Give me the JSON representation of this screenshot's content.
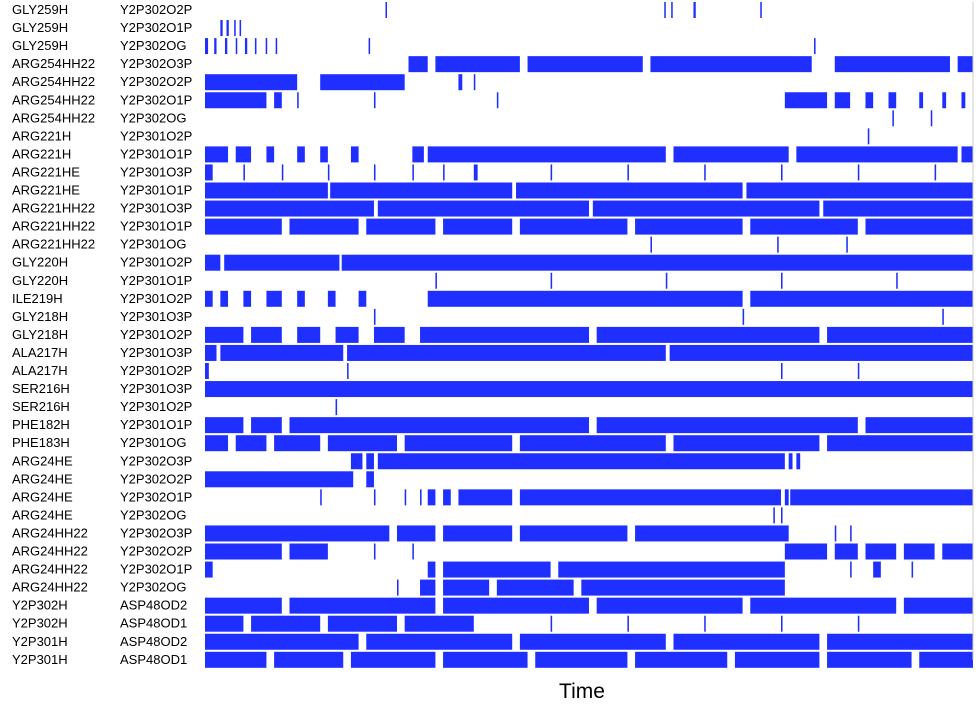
{
  "chart_data": {
    "type": "heatmap",
    "xlabel": "Time",
    "ylabel": "",
    "title": "",
    "xlim": [
      0,
      1
    ],
    "bar_color": "#1f2fff",
    "background": "#ffffff",
    "legend": "none",
    "grid": false,
    "rows": [
      {
        "donor": "GLY259H",
        "acceptor": "Y2P302O2P",
        "segments": [
          [
            0.235,
            0.237
          ],
          [
            0.598,
            0.6
          ],
          [
            0.607,
            0.609
          ],
          [
            0.636,
            0.639
          ],
          [
            0.723,
            0.725
          ]
        ]
      },
      {
        "donor": "GLY259H",
        "acceptor": "Y2P302O1P",
        "segments": [
          [
            0.02,
            0.023
          ],
          [
            0.028,
            0.031
          ],
          [
            0.038,
            0.04
          ],
          [
            0.045,
            0.047
          ]
        ]
      },
      {
        "donor": "GLY259H",
        "acceptor": "Y2P302OG",
        "segments": [
          [
            0.0,
            0.004
          ],
          [
            0.012,
            0.015
          ],
          [
            0.026,
            0.029
          ],
          [
            0.04,
            0.042
          ],
          [
            0.052,
            0.055
          ],
          [
            0.065,
            0.067
          ],
          [
            0.079,
            0.081
          ],
          [
            0.092,
            0.094
          ],
          [
            0.213,
            0.215
          ],
          [
            0.793,
            0.795
          ]
        ]
      },
      {
        "donor": "ARG254HH22",
        "acceptor": "Y2P302O3P",
        "segments": [
          [
            0.265,
            0.29
          ],
          [
            0.3,
            0.41
          ],
          [
            0.42,
            0.57
          ],
          [
            0.58,
            0.79
          ],
          [
            0.82,
            0.97
          ],
          [
            0.98,
            1.0
          ]
        ]
      },
      {
        "donor": "ARG254HH22",
        "acceptor": "Y2P302O2P",
        "segments": [
          [
            0.0,
            0.12
          ],
          [
            0.15,
            0.26
          ],
          [
            0.33,
            0.335
          ],
          [
            0.35,
            0.352
          ]
        ]
      },
      {
        "donor": "ARG254HH22",
        "acceptor": "Y2P302O1P",
        "segments": [
          [
            0.0,
            0.08
          ],
          [
            0.09,
            0.1
          ],
          [
            0.12,
            0.122
          ],
          [
            0.22,
            0.222
          ],
          [
            0.38,
            0.382
          ],
          [
            0.755,
            0.81
          ],
          [
            0.82,
            0.84
          ],
          [
            0.86,
            0.87
          ],
          [
            0.89,
            0.9
          ],
          [
            0.93,
            0.935
          ],
          [
            0.96,
            0.965
          ],
          [
            0.985,
            0.99
          ]
        ]
      },
      {
        "donor": "ARG254HH22",
        "acceptor": "Y2P302OG",
        "segments": [
          [
            0.895,
            0.897
          ],
          [
            0.945,
            0.947
          ]
        ]
      },
      {
        "donor": "ARG221H",
        "acceptor": "Y2P301O2P",
        "segments": [
          [
            0.863,
            0.865
          ]
        ]
      },
      {
        "donor": "ARG221H",
        "acceptor": "Y2P301O1P",
        "segments": [
          [
            0.0,
            0.03
          ],
          [
            0.04,
            0.06
          ],
          [
            0.08,
            0.09
          ],
          [
            0.12,
            0.13
          ],
          [
            0.15,
            0.16
          ],
          [
            0.19,
            0.2
          ],
          [
            0.27,
            0.285
          ],
          [
            0.29,
            0.6
          ],
          [
            0.61,
            0.76
          ],
          [
            0.77,
            0.98
          ],
          [
            0.985,
            1.0
          ]
        ]
      },
      {
        "donor": "ARG221HE",
        "acceptor": "Y2P301O3P",
        "segments": [
          [
            0.0,
            0.01
          ],
          [
            0.05,
            0.052
          ],
          [
            0.1,
            0.102
          ],
          [
            0.16,
            0.162
          ],
          [
            0.22,
            0.222
          ],
          [
            0.27,
            0.272
          ],
          [
            0.31,
            0.312
          ],
          [
            0.35,
            0.355
          ],
          [
            0.45,
            0.452
          ],
          [
            0.55,
            0.552
          ],
          [
            0.65,
            0.652
          ],
          [
            0.75,
            0.752
          ],
          [
            0.85,
            0.852
          ],
          [
            0.95,
            0.952
          ]
        ]
      },
      {
        "donor": "ARG221HE",
        "acceptor": "Y2P301O1P",
        "segments": [
          [
            0.0,
            0.16
          ],
          [
            0.163,
            0.4
          ],
          [
            0.405,
            0.7
          ],
          [
            0.705,
            1.0
          ]
        ]
      },
      {
        "donor": "ARG221HH22",
        "acceptor": "Y2P301O3P",
        "segments": [
          [
            0.0,
            0.22
          ],
          [
            0.225,
            0.5
          ],
          [
            0.505,
            0.8
          ],
          [
            0.805,
            1.0
          ]
        ]
      },
      {
        "donor": "ARG221HH22",
        "acceptor": "Y2P301O1P",
        "segments": [
          [
            0.0,
            0.1
          ],
          [
            0.11,
            0.2
          ],
          [
            0.21,
            0.3
          ],
          [
            0.31,
            0.4
          ],
          [
            0.41,
            0.55
          ],
          [
            0.56,
            0.7
          ],
          [
            0.71,
            0.85
          ],
          [
            0.86,
            1.0
          ]
        ]
      },
      {
        "donor": "ARG221HH22",
        "acceptor": "Y2P301OG",
        "segments": [
          [
            0.58,
            0.582
          ],
          [
            0.745,
            0.747
          ],
          [
            0.835,
            0.837
          ]
        ]
      },
      {
        "donor": "GLY220H",
        "acceptor": "Y2P301O2P",
        "segments": [
          [
            0.0,
            0.02
          ],
          [
            0.025,
            0.175
          ],
          [
            0.178,
            1.0
          ]
        ]
      },
      {
        "donor": "GLY220H",
        "acceptor": "Y2P301O1P",
        "segments": [
          [
            0.3,
            0.302
          ],
          [
            0.45,
            0.452
          ],
          [
            0.6,
            0.602
          ],
          [
            0.75,
            0.752
          ],
          [
            0.9,
            0.902
          ]
        ]
      },
      {
        "donor": "ILE219H",
        "acceptor": "Y2P301O2P",
        "segments": [
          [
            0.0,
            0.01
          ],
          [
            0.02,
            0.03
          ],
          [
            0.05,
            0.06
          ],
          [
            0.08,
            0.1
          ],
          [
            0.12,
            0.13
          ],
          [
            0.16,
            0.17
          ],
          [
            0.2,
            0.21
          ],
          [
            0.29,
            0.7
          ],
          [
            0.71,
            1.0
          ]
        ]
      },
      {
        "donor": "GLY218H",
        "acceptor": "Y2P301O3P",
        "segments": [
          [
            0.22,
            0.222
          ],
          [
            0.7,
            0.702
          ],
          [
            0.96,
            0.962
          ]
        ]
      },
      {
        "donor": "GLY218H",
        "acceptor": "Y2P301O2P",
        "segments": [
          [
            0.0,
            0.05
          ],
          [
            0.06,
            0.1
          ],
          [
            0.12,
            0.15
          ],
          [
            0.17,
            0.2
          ],
          [
            0.22,
            0.26
          ],
          [
            0.28,
            0.5
          ],
          [
            0.51,
            0.8
          ],
          [
            0.81,
            1.0
          ]
        ]
      },
      {
        "donor": "ALA217H",
        "acceptor": "Y2P301O3P",
        "segments": [
          [
            0.0,
            0.015
          ],
          [
            0.02,
            0.18
          ],
          [
            0.185,
            0.6
          ],
          [
            0.605,
            1.0
          ]
        ]
      },
      {
        "donor": "ALA217H",
        "acceptor": "Y2P301O2P",
        "segments": [
          [
            0.0,
            0.005
          ],
          [
            0.185,
            0.187
          ],
          [
            0.75,
            0.752
          ],
          [
            0.85,
            0.852
          ]
        ]
      },
      {
        "donor": "SER216H",
        "acceptor": "Y2P301O3P",
        "segments": [
          [
            0.0,
            1.0
          ]
        ]
      },
      {
        "donor": "SER216H",
        "acceptor": "Y2P301O2P",
        "segments": [
          [
            0.17,
            0.172
          ]
        ]
      },
      {
        "donor": "PHE182H",
        "acceptor": "Y2P301O1P",
        "segments": [
          [
            0.0,
            0.05
          ],
          [
            0.06,
            0.1
          ],
          [
            0.11,
            0.5
          ],
          [
            0.51,
            0.85
          ],
          [
            0.86,
            1.0
          ]
        ]
      },
      {
        "donor": "PHE183H",
        "acceptor": "Y2P301OG",
        "segments": [
          [
            0.0,
            0.03
          ],
          [
            0.04,
            0.08
          ],
          [
            0.09,
            0.15
          ],
          [
            0.16,
            0.25
          ],
          [
            0.26,
            0.4
          ],
          [
            0.41,
            0.6
          ],
          [
            0.61,
            0.8
          ],
          [
            0.81,
            1.0
          ]
        ]
      },
      {
        "donor": "ARG24HE",
        "acceptor": "Y2P302O3P",
        "segments": [
          [
            0.19,
            0.205
          ],
          [
            0.21,
            0.22
          ],
          [
            0.225,
            0.755
          ],
          [
            0.76,
            0.765
          ],
          [
            0.77,
            0.775
          ]
        ]
      },
      {
        "donor": "ARG24HE",
        "acceptor": "Y2P302O2P",
        "segments": [
          [
            0.0,
            0.193
          ],
          [
            0.21,
            0.22
          ]
        ]
      },
      {
        "donor": "ARG24HE",
        "acceptor": "Y2P302O1P",
        "segments": [
          [
            0.15,
            0.152
          ],
          [
            0.22,
            0.222
          ],
          [
            0.26,
            0.262
          ],
          [
            0.28,
            0.282
          ],
          [
            0.29,
            0.3
          ],
          [
            0.31,
            0.32
          ],
          [
            0.33,
            0.4
          ],
          [
            0.41,
            0.75
          ],
          [
            0.755,
            0.76
          ],
          [
            0.762,
            1.0
          ]
        ]
      },
      {
        "donor": "ARG24HE",
        "acceptor": "Y2P302OG",
        "segments": [
          [
            0.74,
            0.742
          ],
          [
            0.75,
            0.752
          ]
        ]
      },
      {
        "donor": "ARG24HH22",
        "acceptor": "Y2P302O3P",
        "segments": [
          [
            0.0,
            0.24
          ],
          [
            0.25,
            0.3
          ],
          [
            0.31,
            0.4
          ],
          [
            0.41,
            0.55
          ],
          [
            0.56,
            0.76
          ],
          [
            0.82,
            0.822
          ],
          [
            0.84,
            0.842
          ]
        ]
      },
      {
        "donor": "ARG24HH22",
        "acceptor": "Y2P302O2P",
        "segments": [
          [
            0.0,
            0.1
          ],
          [
            0.11,
            0.16
          ],
          [
            0.22,
            0.222
          ],
          [
            0.27,
            0.272
          ],
          [
            0.755,
            0.81
          ],
          [
            0.82,
            0.85
          ],
          [
            0.86,
            0.9
          ],
          [
            0.91,
            0.95
          ],
          [
            0.96,
            1.0
          ]
        ]
      },
      {
        "donor": "ARG24HH22",
        "acceptor": "Y2P302O1P",
        "segments": [
          [
            0.0,
            0.01
          ],
          [
            0.29,
            0.3
          ],
          [
            0.31,
            0.45
          ],
          [
            0.46,
            0.755
          ],
          [
            0.84,
            0.842
          ],
          [
            0.87,
            0.88
          ],
          [
            0.92,
            0.922
          ]
        ]
      },
      {
        "donor": "ARG24HH22",
        "acceptor": "Y2P302OG",
        "segments": [
          [
            0.25,
            0.252
          ],
          [
            0.28,
            0.3
          ],
          [
            0.31,
            0.37
          ],
          [
            0.38,
            0.48
          ],
          [
            0.49,
            0.755
          ]
        ]
      },
      {
        "donor": "Y2P302H",
        "acceptor": "ASP48OD2",
        "segments": [
          [
            0.0,
            0.1
          ],
          [
            0.11,
            0.3
          ],
          [
            0.31,
            0.5
          ],
          [
            0.51,
            0.7
          ],
          [
            0.71,
            0.9
          ],
          [
            0.91,
            1.0
          ]
        ]
      },
      {
        "donor": "Y2P302H",
        "acceptor": "ASP48OD1",
        "segments": [
          [
            0.0,
            0.05
          ],
          [
            0.06,
            0.15
          ],
          [
            0.16,
            0.25
          ],
          [
            0.26,
            0.35
          ],
          [
            0.45,
            0.452
          ],
          [
            0.55,
            0.552
          ],
          [
            0.65,
            0.652
          ],
          [
            0.75,
            0.752
          ],
          [
            0.85,
            0.852
          ]
        ]
      },
      {
        "donor": "Y2P301H",
        "acceptor": "ASP48OD2",
        "segments": [
          [
            0.0,
            0.2
          ],
          [
            0.21,
            0.4
          ],
          [
            0.41,
            0.6
          ],
          [
            0.61,
            0.8
          ],
          [
            0.81,
            1.0
          ]
        ]
      },
      {
        "donor": "Y2P301H",
        "acceptor": "ASP48OD1",
        "segments": [
          [
            0.0,
            0.08
          ],
          [
            0.09,
            0.18
          ],
          [
            0.19,
            0.3
          ],
          [
            0.31,
            0.42
          ],
          [
            0.43,
            0.55
          ],
          [
            0.56,
            0.68
          ],
          [
            0.69,
            0.8
          ],
          [
            0.81,
            0.92
          ],
          [
            0.93,
            1.0
          ]
        ]
      }
    ]
  }
}
